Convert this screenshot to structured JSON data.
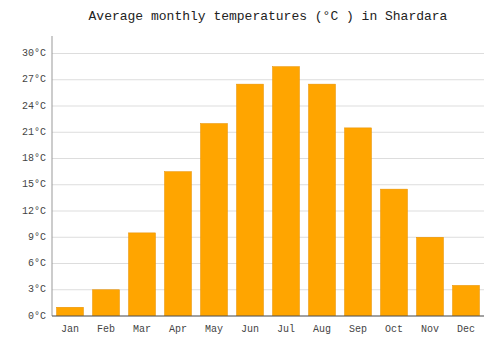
{
  "chart_data": {
    "type": "bar",
    "title": "Average monthly temperatures (°C ) in Shardara",
    "categories": [
      "Jan",
      "Feb",
      "Mar",
      "Apr",
      "May",
      "Jun",
      "Jul",
      "Aug",
      "Sep",
      "Oct",
      "Nov",
      "Dec"
    ],
    "values": [
      1.0,
      3.0,
      9.5,
      16.5,
      22.0,
      26.5,
      28.5,
      26.5,
      21.5,
      14.5,
      9.0,
      3.5
    ],
    "color": "#FFA500",
    "ylim": [
      0,
      32
    ],
    "yticks": [
      {
        "value": 0,
        "label": "0°C"
      },
      {
        "value": 3,
        "label": "3°C"
      },
      {
        "value": 6,
        "label": "6°C"
      },
      {
        "value": 9,
        "label": "9°C"
      },
      {
        "value": 12,
        "label": "12°C"
      },
      {
        "value": 15,
        "label": "15°C"
      },
      {
        "value": 18,
        "label": "18°C"
      },
      {
        "value": 21,
        "label": "21°C"
      },
      {
        "value": 24,
        "label": "24°C"
      },
      {
        "value": 27,
        "label": "27°C"
      },
      {
        "value": 30,
        "label": "30°C"
      }
    ],
    "grid": true
  }
}
